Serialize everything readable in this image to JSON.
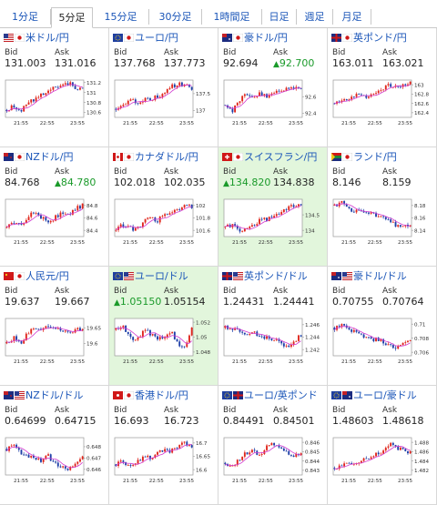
{
  "tabs": [
    {
      "label": "1分足",
      "active": false
    },
    {
      "label": "5分足",
      "active": true
    },
    {
      "label": "15分足",
      "active": false
    },
    {
      "label": "30分足",
      "active": false
    },
    {
      "label": "1時間足",
      "active": false
    },
    {
      "label": "日足",
      "active": false
    },
    {
      "label": "週足",
      "active": false
    },
    {
      "label": "月足",
      "active": false
    }
  ],
  "labels": {
    "bid": "Bid",
    "ask": "Ask"
  },
  "colors": {
    "up": "#e0261c",
    "down": "#1f3fa8",
    "ma": "#d23ad0",
    "highlight": "#e2f6dc",
    "rise": "#1a9a2a",
    "link": "#1a55b8"
  },
  "pairs": [
    {
      "name": "米ドル/円",
      "flags": [
        "us",
        "jp"
      ],
      "bid": "131.003",
      "ask": "131.016",
      "bid_up": false,
      "ask_up": false,
      "highlight": false,
      "chart_data": {
        "type": "candlestick",
        "x_ticks": [
          "21:55",
          "22:55",
          "23:55"
        ],
        "y_ticks": [
          "131.2",
          "131",
          "130.8",
          "130.6"
        ],
        "ylim": [
          130.5,
          131.25
        ],
        "trend": [
          130.65,
          130.72,
          130.62,
          130.78,
          130.85,
          130.95,
          131.05,
          131.1,
          131.12,
          131.18,
          131.1,
          131.05
        ]
      }
    },
    {
      "name": "ユーロ/円",
      "flags": [
        "eu",
        "jp"
      ],
      "bid": "137.768",
      "ask": "137.773",
      "bid_up": false,
      "ask_up": false,
      "highlight": false,
      "chart_data": {
        "type": "candlestick",
        "x_ticks": [
          "21:55",
          "22:55",
          "23:55"
        ],
        "y_ticks": [
          "137.5",
          "137"
        ],
        "ylim": [
          136.8,
          137.9
        ],
        "trend": [
          137.05,
          137.2,
          137.3,
          137.25,
          137.3,
          137.35,
          137.4,
          137.55,
          137.7,
          137.8,
          137.75,
          137.65
        ]
      }
    },
    {
      "name": "豪ドル/円",
      "flags": [
        "au",
        "jp"
      ],
      "bid": "92.694",
      "ask": "92.700",
      "bid_up": false,
      "ask_up": true,
      "highlight": false,
      "chart_data": {
        "type": "candlestick",
        "x_ticks": [
          "21:55",
          "22:55",
          "23:55"
        ],
        "y_ticks": [
          "92.6",
          "92.4"
        ],
        "ylim": [
          92.35,
          92.8
        ],
        "trend": [
          92.5,
          92.42,
          92.55,
          92.62,
          92.6,
          92.65,
          92.6,
          92.62,
          92.7,
          92.68,
          92.72,
          92.7
        ]
      }
    },
    {
      "name": "英ポンド/円",
      "flags": [
        "gb",
        "jp"
      ],
      "bid": "163.011",
      "ask": "163.021",
      "bid_up": false,
      "ask_up": false,
      "highlight": false,
      "chart_data": {
        "type": "candlestick",
        "x_ticks": [
          "21:55",
          "22:55",
          "23:55"
        ],
        "y_ticks": [
          "163",
          "162.8",
          "162.6",
          "162.4"
        ],
        "ylim": [
          162.3,
          163.1
        ],
        "trend": [
          162.6,
          162.7,
          162.65,
          162.75,
          162.8,
          162.7,
          162.85,
          162.9,
          163.0,
          162.95,
          163.0,
          163.05
        ]
      }
    },
    {
      "name": "NZドル/円",
      "flags": [
        "nz",
        "jp"
      ],
      "bid": "84.768",
      "ask": "84.780",
      "bid_up": false,
      "ask_up": true,
      "highlight": false,
      "chart_data": {
        "type": "candlestick",
        "x_ticks": [
          "21:55",
          "22:55",
          "23:55"
        ],
        "y_ticks": [
          "84.8",
          "84.6",
          "84.4"
        ],
        "ylim": [
          84.3,
          84.9
        ],
        "trend": [
          84.45,
          84.55,
          84.5,
          84.6,
          84.7,
          84.6,
          84.55,
          84.6,
          84.7,
          84.65,
          84.75,
          84.8
        ]
      }
    },
    {
      "name": "カナダドル/円",
      "flags": [
        "ca",
        "jp"
      ],
      "bid": "102.018",
      "ask": "102.035",
      "bid_up": false,
      "ask_up": false,
      "highlight": false,
      "chart_data": {
        "type": "candlestick",
        "x_ticks": [
          "21:55",
          "22:55",
          "23:55"
        ],
        "y_ticks": [
          "102",
          "101.8",
          "101.6"
        ],
        "ylim": [
          101.5,
          102.1
        ],
        "trend": [
          101.6,
          101.7,
          101.65,
          101.6,
          101.75,
          101.8,
          101.75,
          101.85,
          101.9,
          101.95,
          102.0,
          101.98
        ]
      }
    },
    {
      "name": "スイスフラン/円",
      "flags": [
        "ch",
        "jp"
      ],
      "bid": "134.820",
      "ask": "134.838",
      "bid_up": true,
      "ask_up": false,
      "highlight": true,
      "chart_data": {
        "type": "candlestick",
        "x_ticks": [
          "21:55",
          "22:55",
          "23:55"
        ],
        "y_ticks": [
          "134.5",
          "134"
        ],
        "ylim": [
          133.8,
          135.0
        ],
        "trend": [
          134.1,
          134.15,
          134.0,
          134.05,
          134.2,
          134.3,
          134.35,
          134.5,
          134.6,
          134.7,
          134.8,
          134.82
        ]
      }
    },
    {
      "name": "ランド/円",
      "flags": [
        "za",
        "jp"
      ],
      "bid": "8.146",
      "ask": "8.159",
      "bid_up": false,
      "ask_up": false,
      "highlight": false,
      "chart_data": {
        "type": "candlestick",
        "x_ticks": [
          "21:55",
          "22:55",
          "23:55"
        ],
        "y_ticks": [
          "8.18",
          "8.16",
          "8.14"
        ],
        "ylim": [
          8.13,
          8.19
        ],
        "trend": [
          8.18,
          8.185,
          8.175,
          8.17,
          8.172,
          8.168,
          8.165,
          8.16,
          8.155,
          8.148,
          8.145,
          8.147
        ]
      }
    },
    {
      "name": "人民元/円",
      "flags": [
        "cn",
        "jp"
      ],
      "bid": "19.637",
      "ask": "19.667",
      "bid_up": false,
      "ask_up": false,
      "highlight": false,
      "chart_data": {
        "type": "candlestick",
        "x_ticks": [
          "21:55",
          "22:55",
          "23:55"
        ],
        "y_ticks": [
          "19.65",
          "19.6"
        ],
        "ylim": [
          19.56,
          19.68
        ],
        "trend": [
          19.6,
          19.62,
          19.6,
          19.63,
          19.65,
          19.64,
          19.66,
          19.65,
          19.64,
          19.63,
          19.65,
          19.64
        ]
      }
    },
    {
      "name": "ユーロ/ドル",
      "flags": [
        "eu",
        "us"
      ],
      "bid": "1.05150",
      "ask": "1.05154",
      "bid_up": true,
      "ask_up": false,
      "highlight": true,
      "chart_data": {
        "type": "candlestick",
        "x_ticks": [
          "21:55",
          "22:55",
          "23:55"
        ],
        "y_ticks": [
          "1.052",
          "1.05",
          "1.048"
        ],
        "ylim": [
          1.0475,
          1.0525
        ],
        "trend": [
          1.051,
          1.0515,
          1.05,
          1.0495,
          1.051,
          1.0505,
          1.05,
          1.0495,
          1.051,
          1.049,
          1.0485,
          1.0515
        ]
      }
    },
    {
      "name": "英ポンド/ドル",
      "flags": [
        "gb",
        "us"
      ],
      "bid": "1.24431",
      "ask": "1.24441",
      "bid_up": false,
      "ask_up": false,
      "highlight": false,
      "chart_data": {
        "type": "candlestick",
        "x_ticks": [
          "21:55",
          "22:55",
          "23:55"
        ],
        "y_ticks": [
          "1.246",
          "1.244",
          "1.242"
        ],
        "ylim": [
          1.241,
          1.247
        ],
        "trend": [
          1.2455,
          1.245,
          1.2452,
          1.2445,
          1.2448,
          1.2442,
          1.2438,
          1.2435,
          1.243,
          1.2425,
          1.2435,
          1.2442
        ]
      }
    },
    {
      "name": "豪ドル/ドル",
      "flags": [
        "au",
        "us"
      ],
      "bid": "0.70755",
      "ask": "0.70764",
      "bid_up": false,
      "ask_up": false,
      "highlight": false,
      "chart_data": {
        "type": "candlestick",
        "x_ticks": [
          "21:55",
          "22:55",
          "23:55"
        ],
        "y_ticks": [
          "0.71",
          "0.708",
          "0.706"
        ],
        "ylim": [
          0.7055,
          0.7108
        ],
        "trend": [
          0.7095,
          0.71,
          0.7092,
          0.7088,
          0.7085,
          0.708,
          0.7078,
          0.7075,
          0.707,
          0.7065,
          0.7072,
          0.7076
        ]
      }
    },
    {
      "name": "NZドル/ドル",
      "flags": [
        "nz",
        "us"
      ],
      "bid": "0.64699",
      "ask": "0.64715",
      "bid_up": false,
      "ask_up": false,
      "highlight": false,
      "chart_data": {
        "type": "candlestick",
        "x_ticks": [
          "21:55",
          "22:55",
          "23:55"
        ],
        "y_ticks": [
          "0.648",
          "0.647",
          "0.646"
        ],
        "ylim": [
          0.6455,
          0.6488
        ],
        "trend": [
          0.6478,
          0.6482,
          0.6475,
          0.6472,
          0.647,
          0.6468,
          0.6472,
          0.6465,
          0.6462,
          0.646,
          0.6466,
          0.647
        ]
      }
    },
    {
      "name": "香港ドル/円",
      "flags": [
        "hk",
        "jp"
      ],
      "bid": "16.693",
      "ask": "16.723",
      "bid_up": false,
      "ask_up": false,
      "highlight": false,
      "chart_data": {
        "type": "candlestick",
        "x_ticks": [
          "21:55",
          "22:55",
          "23:55"
        ],
        "y_ticks": [
          "16.7",
          "16.65",
          "16.6"
        ],
        "ylim": [
          16.58,
          16.72
        ],
        "trend": [
          16.62,
          16.63,
          16.61,
          16.63,
          16.65,
          16.64,
          16.66,
          16.68,
          16.67,
          16.69,
          16.7,
          16.69
        ]
      }
    },
    {
      "name": "ユーロ/英ポンド",
      "flags": [
        "eu",
        "gb"
      ],
      "bid": "0.84491",
      "ask": "0.84501",
      "bid_up": false,
      "ask_up": false,
      "highlight": false,
      "chart_data": {
        "type": "candlestick",
        "x_ticks": [
          "21:55",
          "22:55",
          "23:55"
        ],
        "y_ticks": [
          "0.846",
          "0.845",
          "0.844",
          "0.843"
        ],
        "ylim": [
          0.8425,
          0.8465
        ],
        "trend": [
          0.8438,
          0.8435,
          0.8442,
          0.8448,
          0.8452,
          0.8445,
          0.8455,
          0.846,
          0.8452,
          0.8448,
          0.8445,
          0.8449
        ]
      }
    },
    {
      "name": "ユーロ/豪ドル",
      "flags": [
        "eu",
        "au"
      ],
      "bid": "1.48603",
      "ask": "1.48618",
      "bid_up": false,
      "ask_up": false,
      "highlight": false,
      "chart_data": {
        "type": "candlestick",
        "x_ticks": [
          "21:55",
          "22:55",
          "23:55"
        ],
        "y_ticks": [
          "1.488",
          "1.486",
          "1.484",
          "1.482"
        ],
        "ylim": [
          1.481,
          1.489
        ],
        "trend": [
          1.4825,
          1.483,
          1.4835,
          1.4832,
          1.484,
          1.4848,
          1.4855,
          1.486,
          1.4875,
          1.4868,
          1.4862,
          1.486
        ]
      }
    }
  ]
}
